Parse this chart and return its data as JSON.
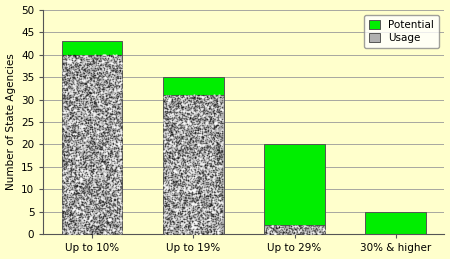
{
  "categories": [
    "Up to 10%",
    "Up to 19%",
    "Up to 29%",
    "30% & higher"
  ],
  "usage": [
    40,
    31,
    2,
    0
  ],
  "potential": [
    3,
    4,
    18,
    5
  ],
  "usage_color": "#b0b0b0",
  "potential_color": "#00ee00",
  "ylabel": "Number of State Agencies",
  "ylim": [
    0,
    50
  ],
  "yticks": [
    0,
    5,
    10,
    15,
    20,
    25,
    30,
    35,
    40,
    45,
    50
  ],
  "background_color": "#ffffcc",
  "bar_width": 0.6,
  "dot_size": 1.2,
  "dot_density": 180,
  "grid_color": "#999999",
  "spine_color": "#555555"
}
